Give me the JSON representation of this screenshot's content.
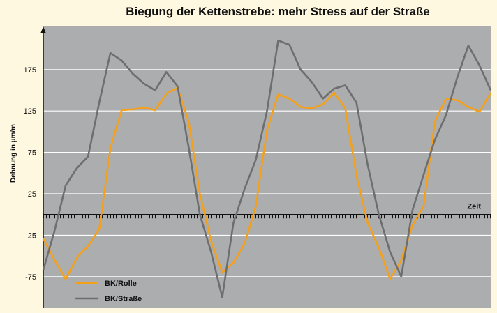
{
  "chart_data": {
    "type": "line",
    "title": "Biegung der Kettenstrebe: mehr Stress auf der Straße",
    "y_label": "Dehnung in µm/m",
    "x_label": "Zeit",
    "ylim": [
      -113,
      227
    ],
    "yticks": [
      -75,
      -25,
      25,
      75,
      125,
      175
    ],
    "grid": true,
    "legend": "lower left",
    "series": [
      {
        "name": "BK/Rolle",
        "color": "#f5a01a",
        "values": [
          -29,
          -55,
          -78,
          -52,
          -38,
          -18,
          80,
          126,
          127,
          129,
          126,
          146,
          153,
          112,
          25,
          -32,
          -70,
          -58,
          -35,
          10,
          102,
          145,
          140,
          130,
          128,
          133,
          147,
          128,
          47,
          -10,
          -40,
          -78,
          -55,
          -13,
          10,
          112,
          140,
          138,
          130,
          124,
          147
        ]
      },
      {
        "name": "BK/Straße",
        "color": "#6e6e6e",
        "values": [
          -67,
          -20,
          35,
          56,
          70,
          135,
          195,
          186,
          170,
          158,
          150,
          172,
          155,
          81,
          0,
          -45,
          -100,
          -10,
          31,
          66,
          125,
          210,
          205,
          175,
          160,
          140,
          152,
          156,
          135,
          60,
          0,
          -45,
          -75,
          5,
          48,
          90,
          120,
          165,
          204,
          180,
          150
        ]
      }
    ]
  }
}
